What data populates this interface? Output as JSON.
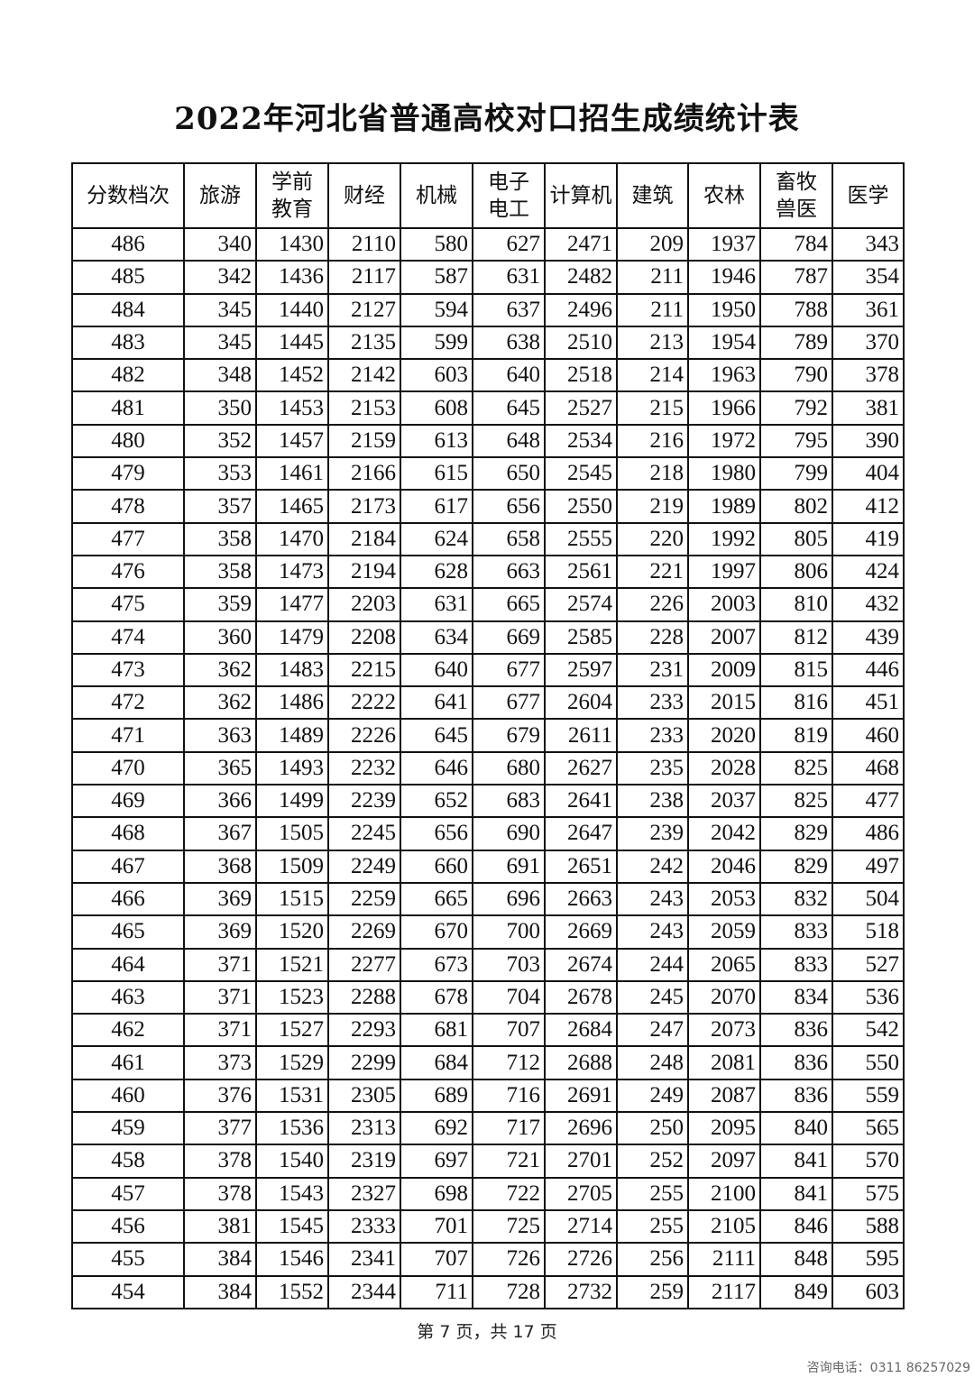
{
  "title": "2022年河北省普通高校对口招生成绩统计表",
  "headers": [
    "分数档次",
    "旅游",
    "学前\n教育",
    "财经",
    "机械",
    "电子\n电工",
    "计算机",
    "建筑",
    "农林",
    "畜牧\n兽医",
    "医学"
  ],
  "rows": [
    [
      486,
      340,
      1430,
      2110,
      580,
      627,
      2471,
      209,
      1937,
      784,
      343
    ],
    [
      485,
      342,
      1436,
      2117,
      587,
      631,
      2482,
      211,
      1946,
      787,
      354
    ],
    [
      484,
      345,
      1440,
      2127,
      594,
      637,
      2496,
      211,
      1950,
      788,
      361
    ],
    [
      483,
      345,
      1445,
      2135,
      599,
      638,
      2510,
      213,
      1954,
      789,
      370
    ],
    [
      482,
      348,
      1452,
      2142,
      603,
      640,
      2518,
      214,
      1963,
      790,
      378
    ],
    [
      481,
      350,
      1453,
      2153,
      608,
      645,
      2527,
      215,
      1966,
      792,
      381
    ],
    [
      480,
      352,
      1457,
      2159,
      613,
      648,
      2534,
      216,
      1972,
      795,
      390
    ],
    [
      479,
      353,
      1461,
      2166,
      615,
      650,
      2545,
      218,
      1980,
      799,
      404
    ],
    [
      478,
      357,
      1465,
      2173,
      617,
      656,
      2550,
      219,
      1989,
      802,
      412
    ],
    [
      477,
      358,
      1470,
      2184,
      624,
      658,
      2555,
      220,
      1992,
      805,
      419
    ],
    [
      476,
      358,
      1473,
      2194,
      628,
      663,
      2561,
      221,
      1997,
      806,
      424
    ],
    [
      475,
      359,
      1477,
      2203,
      631,
      665,
      2574,
      226,
      2003,
      810,
      432
    ],
    [
      474,
      360,
      1479,
      2208,
      634,
      669,
      2585,
      228,
      2007,
      812,
      439
    ],
    [
      473,
      362,
      1483,
      2215,
      640,
      677,
      2597,
      231,
      2009,
      815,
      446
    ],
    [
      472,
      362,
      1486,
      2222,
      641,
      677,
      2604,
      233,
      2015,
      816,
      451
    ],
    [
      471,
      363,
      1489,
      2226,
      645,
      679,
      2611,
      233,
      2020,
      819,
      460
    ],
    [
      470,
      365,
      1493,
      2232,
      646,
      680,
      2627,
      235,
      2028,
      825,
      468
    ],
    [
      469,
      366,
      1499,
      2239,
      652,
      683,
      2641,
      238,
      2037,
      825,
      477
    ],
    [
      468,
      367,
      1505,
      2245,
      656,
      690,
      2647,
      239,
      2042,
      829,
      486
    ],
    [
      467,
      368,
      1509,
      2249,
      660,
      691,
      2651,
      242,
      2046,
      829,
      497
    ],
    [
      466,
      369,
      1515,
      2259,
      665,
      696,
      2663,
      243,
      2053,
      832,
      504
    ],
    [
      465,
      369,
      1520,
      2269,
      670,
      700,
      2669,
      243,
      2059,
      833,
      518
    ],
    [
      464,
      371,
      1521,
      2277,
      673,
      703,
      2674,
      244,
      2065,
      833,
      527
    ],
    [
      463,
      371,
      1523,
      2288,
      678,
      704,
      2678,
      245,
      2070,
      834,
      536
    ],
    [
      462,
      371,
      1527,
      2293,
      681,
      707,
      2684,
      247,
      2073,
      836,
      542
    ],
    [
      461,
      373,
      1529,
      2299,
      684,
      712,
      2688,
      248,
      2081,
      836,
      550
    ],
    [
      460,
      376,
      1531,
      2305,
      689,
      716,
      2691,
      249,
      2087,
      836,
      559
    ],
    [
      459,
      377,
      1536,
      2313,
      692,
      717,
      2696,
      250,
      2095,
      840,
      565
    ],
    [
      458,
      378,
      1540,
      2319,
      697,
      721,
      2701,
      252,
      2097,
      841,
      570
    ],
    [
      457,
      378,
      1543,
      2327,
      698,
      722,
      2705,
      255,
      2100,
      841,
      575
    ],
    [
      456,
      381,
      1545,
      2333,
      701,
      725,
      2714,
      255,
      2105,
      846,
      588
    ],
    [
      455,
      384,
      1546,
      2341,
      707,
      726,
      2726,
      256,
      2111,
      848,
      595
    ],
    [
      454,
      384,
      1552,
      2344,
      711,
      728,
      2732,
      259,
      2117,
      849,
      603
    ]
  ],
  "footer": "第 7 页，共 17 页",
  "contact": "咨询电话：0311 86257029"
}
